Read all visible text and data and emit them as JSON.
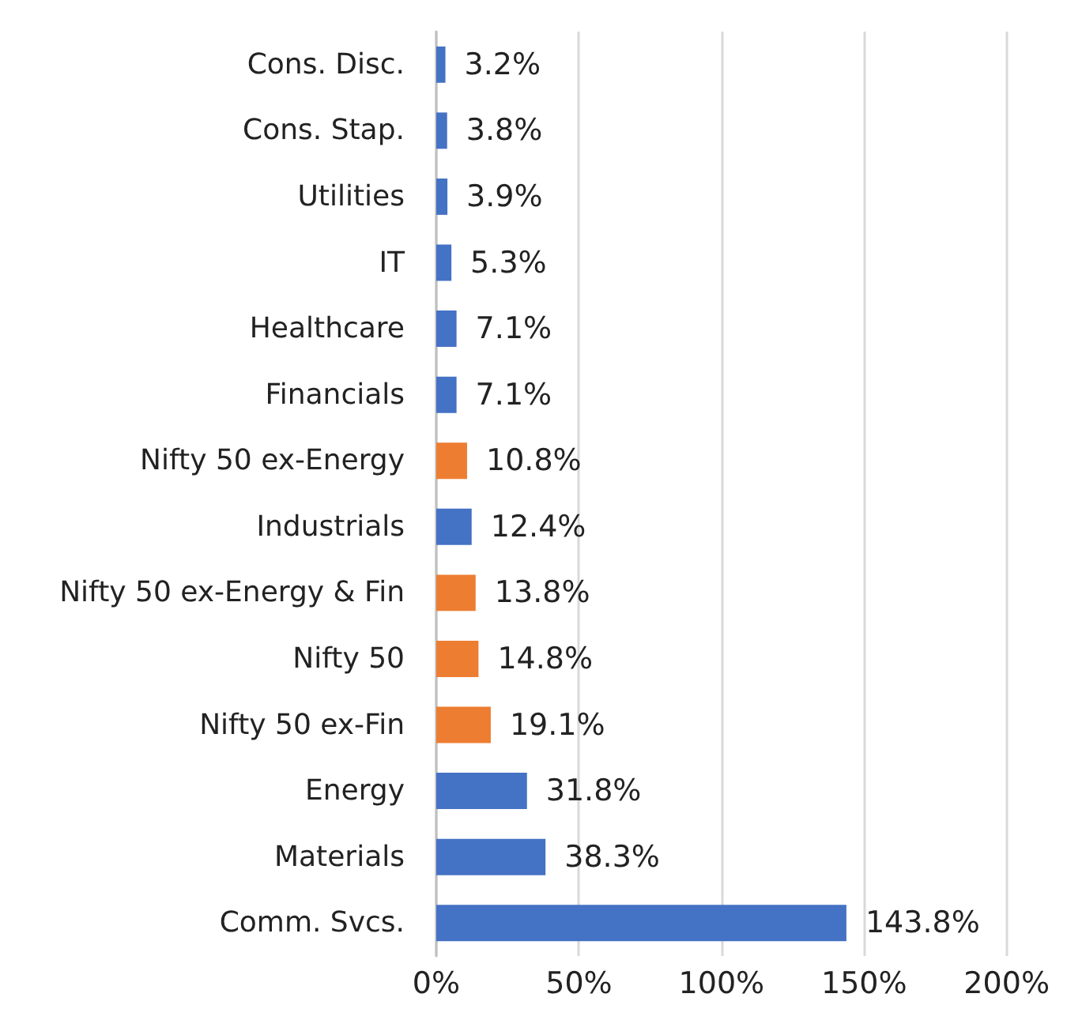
{
  "chart_data": {
    "type": "bar",
    "orientation": "horizontal",
    "categories": [
      "Cons. Disc.",
      "Cons. Stap.",
      "Utilities",
      "IT",
      "Healthcare",
      "Financials",
      "Nifty 50 ex-Energy",
      "Industrials",
      "Nifty 50 ex-Energy & Fin",
      "Nifty 50",
      "Nifty 50 ex-Fin",
      "Energy",
      "Materials",
      "Comm. Svcs."
    ],
    "values": [
      3.2,
      3.8,
      3.9,
      5.3,
      7.1,
      7.1,
      10.8,
      12.4,
      13.8,
      14.8,
      19.1,
      31.8,
      38.3,
      143.8
    ],
    "value_labels": [
      "3.2%",
      "3.8%",
      "3.9%",
      "5.3%",
      "7.1%",
      "7.1%",
      "10.8%",
      "12.4%",
      "13.8%",
      "14.8%",
      "19.1%",
      "31.8%",
      "38.3%",
      "143.8%"
    ],
    "colors": [
      "#4472c4",
      "#4472c4",
      "#4472c4",
      "#4472c4",
      "#4472c4",
      "#4472c4",
      "#ed7d31",
      "#4472c4",
      "#ed7d31",
      "#ed7d31",
      "#ed7d31",
      "#4472c4",
      "#4472c4",
      "#4472c4"
    ],
    "xlim": [
      0,
      200
    ],
    "xticks": [
      {
        "value": 0,
        "label": "0%"
      },
      {
        "value": 50,
        "label": "50%"
      },
      {
        "value": 100,
        "label": "100%"
      },
      {
        "value": 150,
        "label": "150%"
      },
      {
        "value": 200,
        "label": "200%"
      }
    ],
    "grid": "x"
  }
}
